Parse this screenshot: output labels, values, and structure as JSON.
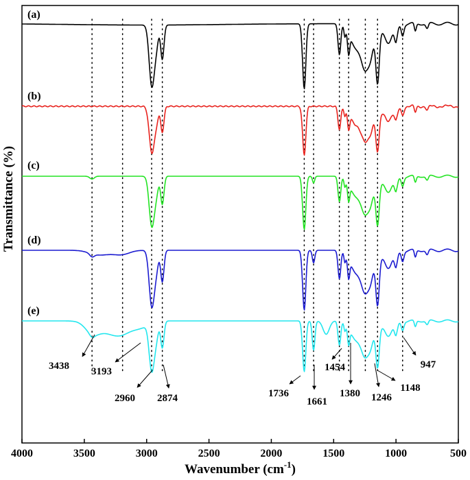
{
  "chart_data": {
    "type": "line",
    "title": "",
    "xlabel": "Wavenumber (cm",
    "xlabel_sup": "-1",
    "xlabel_close": ")",
    "ylabel": "Transmittance (%)",
    "xlim": [
      4000,
      500
    ],
    "x_reversed": true,
    "x_ticks": [
      4000,
      3500,
      3000,
      2500,
      2000,
      1500,
      1000,
      500
    ],
    "y_ticks_shown": false,
    "grid": false,
    "legend": "none",
    "series": [
      {
        "name": "(a)",
        "color": "#000000"
      },
      {
        "name": "(b)",
        "color": "#e8221d"
      },
      {
        "name": "(c)",
        "color": "#22e322"
      },
      {
        "name": "(d)",
        "color": "#1a1ad0"
      },
      {
        "name": "(e)",
        "color": "#22e6ee"
      }
    ],
    "series_shape": {
      "note_values": "relative transmittance 0..1 per stacked curve",
      "common_bands": [
        {
          "x": 2960,
          "depth": 0.82
        },
        {
          "x": 2874,
          "depth": 0.45
        },
        {
          "x": 1736,
          "depth": 0.95
        },
        {
          "x": 1454,
          "depth": 0.45
        },
        {
          "x": 1380,
          "depth": 0.3
        },
        {
          "x": 1246,
          "depth": 0.55
        },
        {
          "x": 1148,
          "depth": 0.75
        },
        {
          "x": 947,
          "depth": 0.18
        }
      ]
    },
    "peak_markers": [
      3438,
      3193,
      2960,
      2874,
      1736,
      1661,
      1454,
      1380,
      1246,
      1148,
      947
    ],
    "annotations": [
      {
        "label": "3438",
        "x": 3438
      },
      {
        "label": "3193",
        "x": 3193
      },
      {
        "label": "2960",
        "x": 2960
      },
      {
        "label": "2874",
        "x": 2874
      },
      {
        "label": "1736",
        "x": 1736
      },
      {
        "label": "1661",
        "x": 1661
      },
      {
        "label": "1454",
        "x": 1454
      },
      {
        "label": "1380",
        "x": 1380
      },
      {
        "label": "1246",
        "x": 1246
      },
      {
        "label": "1148",
        "x": 1148
      },
      {
        "label": "947",
        "x": 947
      }
    ]
  }
}
